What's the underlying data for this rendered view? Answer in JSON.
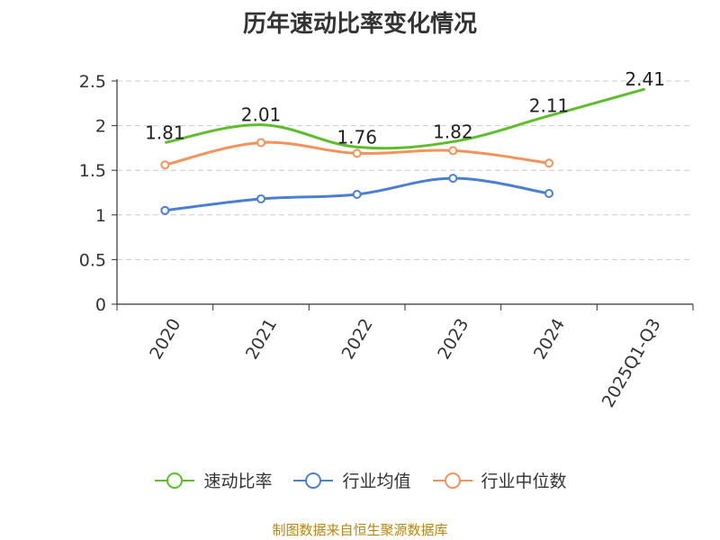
{
  "title": "历年速动比率变化情况",
  "source": "制图数据来自恒生聚源数据库",
  "chart_data": {
    "type": "line",
    "title": "历年速动比率变化情况",
    "xlabel": "",
    "ylabel": "",
    "categories": [
      "2020",
      "2021",
      "2022",
      "2023",
      "2024",
      "2025Q1-Q3"
    ],
    "ylim": [
      0,
      2.5
    ],
    "yticks": [
      "0",
      "0.5",
      "1",
      "1.5",
      "2",
      "2.5"
    ],
    "grid": true,
    "legend_position": "bottom",
    "series": [
      {
        "name": "速动比率",
        "color": "#5cbf2a",
        "values": [
          1.81,
          2.01,
          1.76,
          1.82,
          2.11,
          2.41
        ],
        "labels": [
          "1.81",
          "2.01",
          "1.76",
          "1.82",
          "2.11",
          "2.41"
        ]
      },
      {
        "name": "行业均值",
        "color": "#4a7fd6",
        "values": [
          1.05,
          1.18,
          1.23,
          1.41,
          1.24,
          null
        ]
      },
      {
        "name": "行业中位数",
        "color": "#f5925a",
        "values": [
          1.56,
          1.81,
          1.69,
          1.72,
          1.58,
          null
        ]
      }
    ]
  }
}
